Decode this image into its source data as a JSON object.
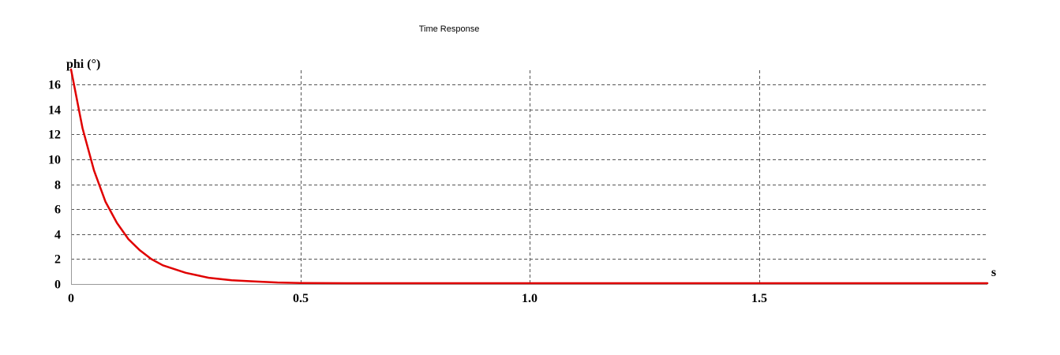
{
  "chart_data": {
    "type": "line",
    "title": "Time Response",
    "ylabel": "phi (°)",
    "xlabel": "s",
    "xlim": [
      0,
      2.0
    ],
    "ylim": [
      0,
      17.2
    ],
    "xticks": [
      0,
      0.5,
      1.0,
      1.5
    ],
    "xtick_labels": [
      "0",
      "0.5",
      "1.0",
      "1.5"
    ],
    "yticks": [
      0,
      2,
      4,
      6,
      8,
      10,
      12,
      14,
      16
    ],
    "ytick_labels": [
      "0",
      "2",
      "4",
      "6",
      "8",
      "10",
      "12",
      "14",
      "16"
    ],
    "grid": true,
    "color": "#e00000",
    "series": [
      {
        "x": [
          0,
          0.025,
          0.05,
          0.075,
          0.1,
          0.125,
          0.15,
          0.175,
          0.2,
          0.25,
          0.3,
          0.35,
          0.4,
          0.45,
          0.5,
          0.6,
          0.7,
          0.8,
          1.0,
          1.2,
          1.5,
          1.75,
          2.0
        ],
        "y": [
          17.2,
          12.5,
          9.1,
          6.6,
          4.9,
          3.6,
          2.7,
          2.0,
          1.5,
          0.9,
          0.5,
          0.3,
          0.2,
          0.12,
          0.08,
          0.04,
          0.02,
          0.01,
          0.0,
          0.0,
          0.0,
          0.0,
          0.0
        ]
      }
    ]
  }
}
